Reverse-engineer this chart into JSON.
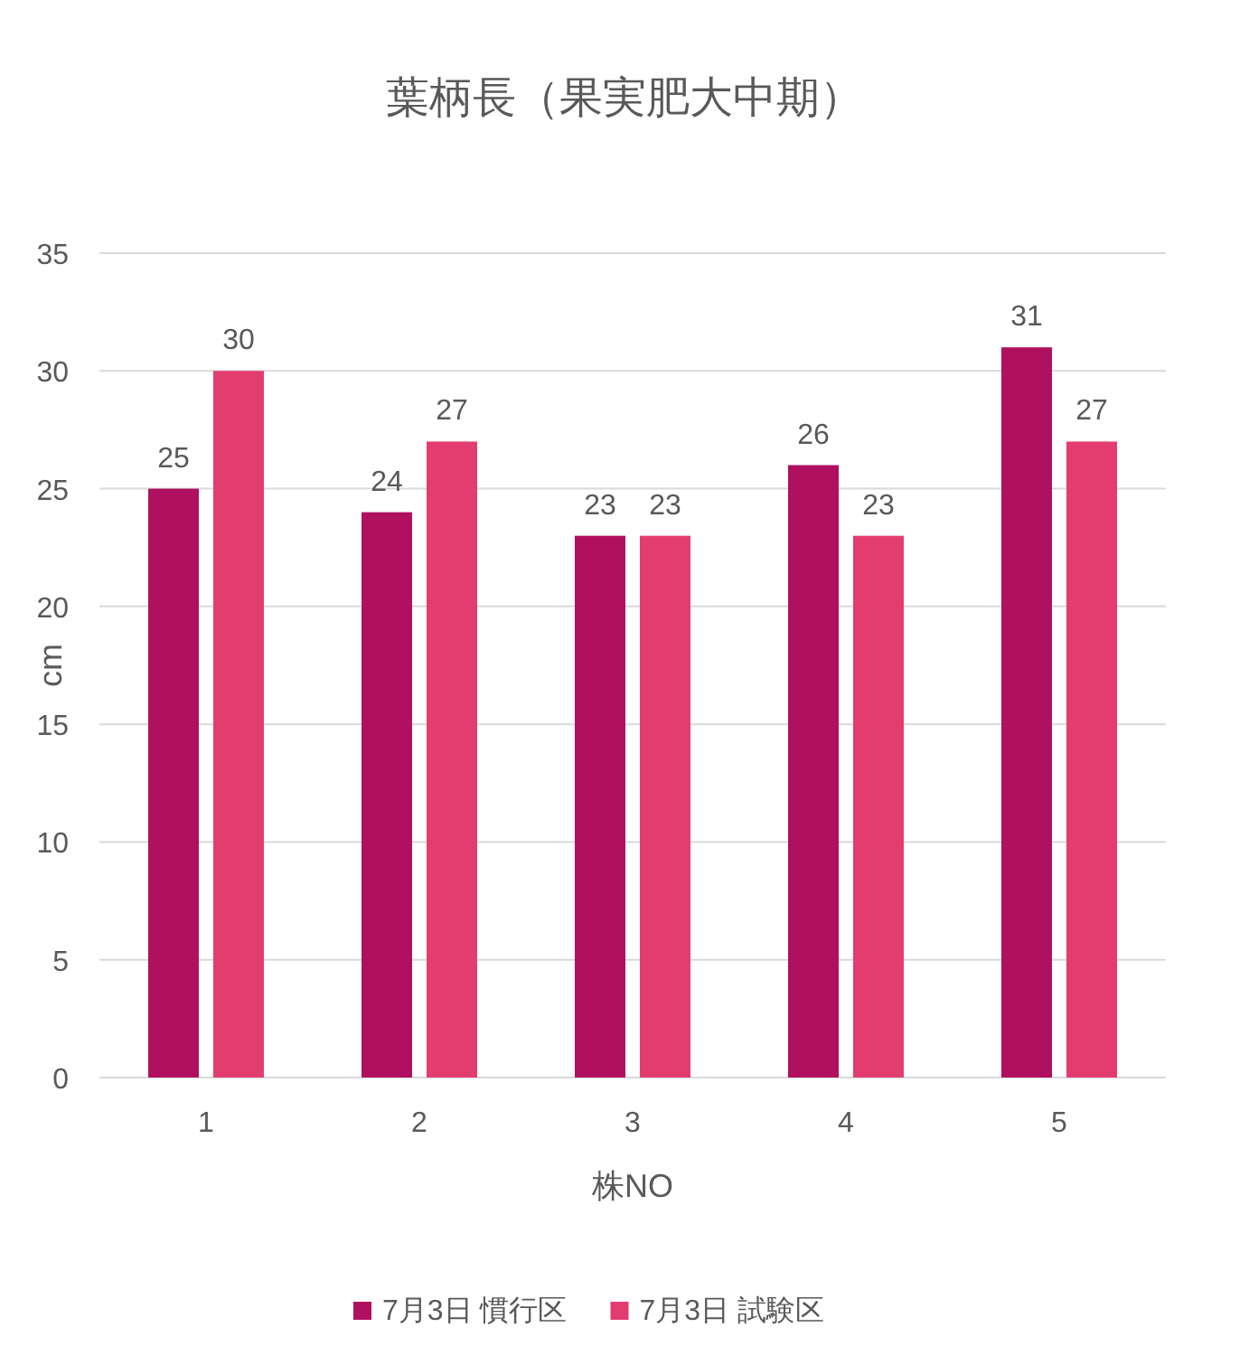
{
  "chart_data": {
    "type": "bar",
    "title": "葉柄長（果実肥大中期）",
    "xlabel": "株NO",
    "ylabel": "cm",
    "categories": [
      "1",
      "2",
      "3",
      "4",
      "5"
    ],
    "series": [
      {
        "name": "7月3日 慣行区",
        "color": "#b01060",
        "values": [
          25,
          24,
          23,
          26,
          31
        ]
      },
      {
        "name": "7月3日 試験区",
        "color": "#e33d6f",
        "values": [
          30,
          27,
          23,
          23,
          27
        ]
      }
    ],
    "ylim": [
      0,
      35
    ],
    "yticks": [
      0,
      5,
      10,
      15,
      20,
      25,
      30,
      35
    ],
    "grid": "y",
    "legend": "bottom",
    "data_labels": true
  }
}
